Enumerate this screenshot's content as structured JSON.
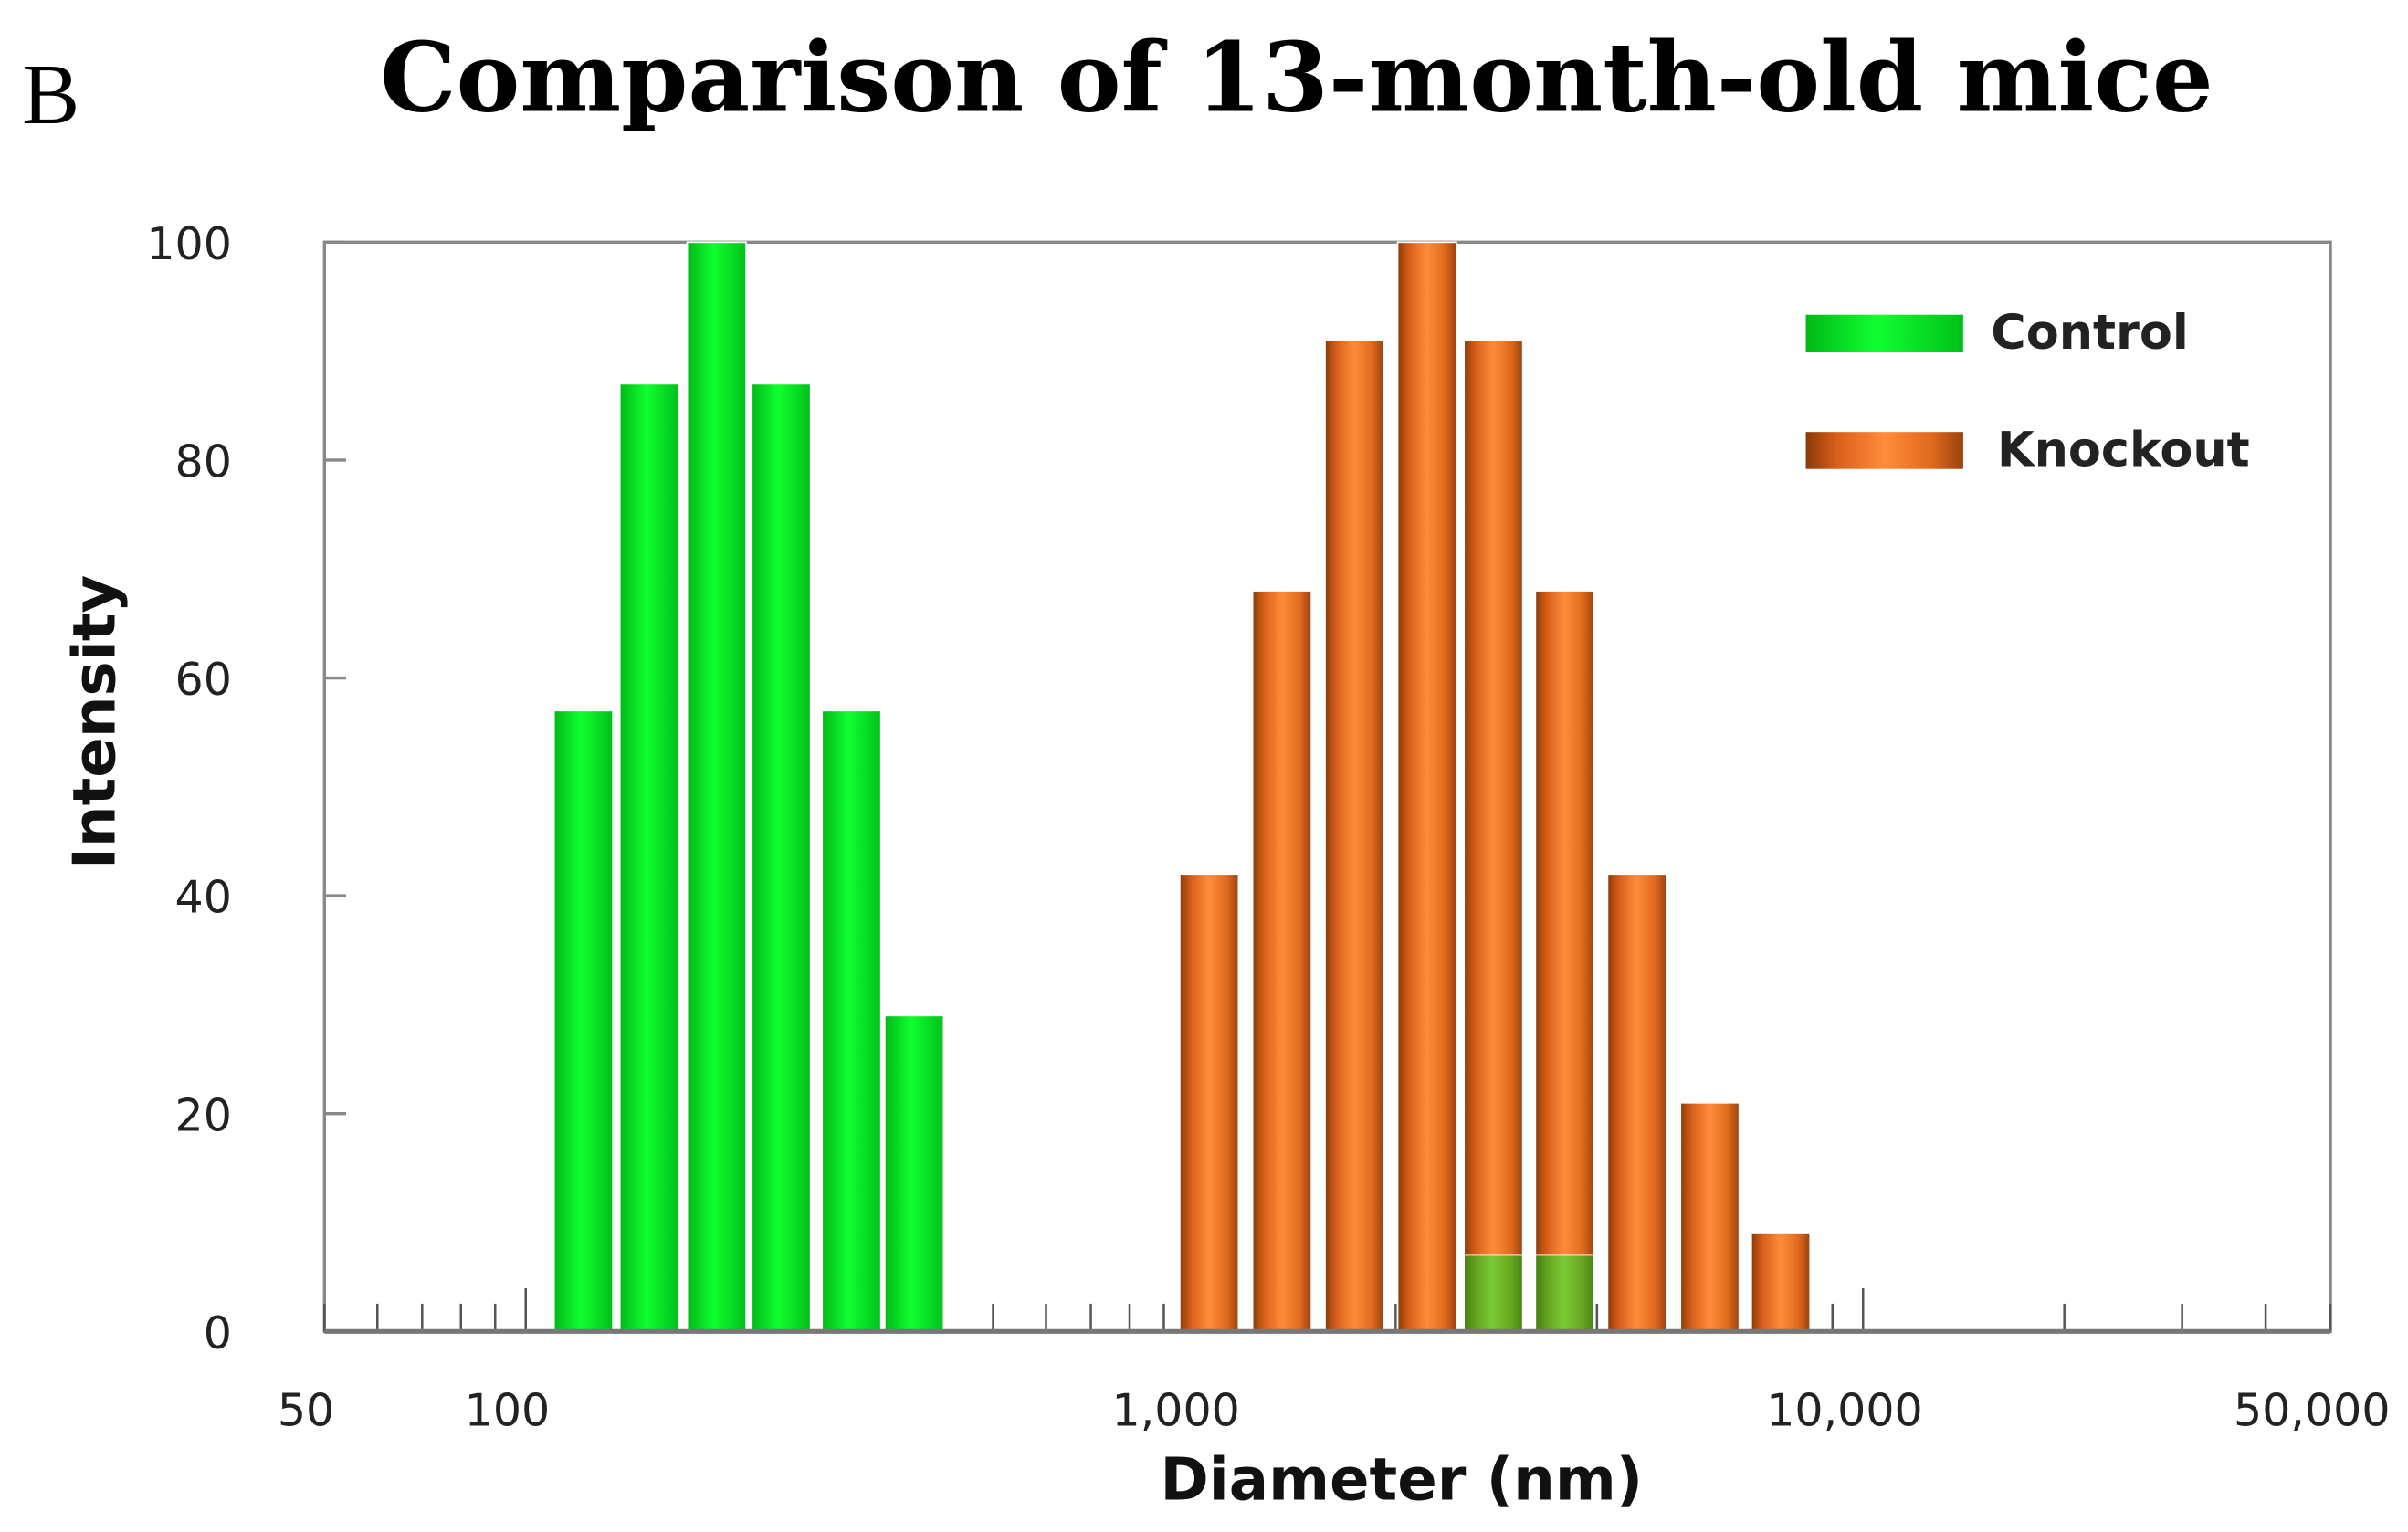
{
  "panel_label": "B",
  "chart_data": {
    "type": "bar",
    "title": "Comparison of 13-month-old mice",
    "xlabel": "Diameter (nm)",
    "ylabel": "Intensity",
    "xscale": "log",
    "xlim": [
      50,
      50000
    ],
    "ylim": [
      0,
      100
    ],
    "xticks": [
      {
        "value": 50,
        "label": "50"
      },
      {
        "value": 100,
        "label": "100"
      },
      {
        "value": 1000,
        "label": "1,000"
      },
      {
        "value": 10000,
        "label": "10,000"
      },
      {
        "value": 50000,
        "label": "50,000"
      }
    ],
    "yticks": [
      {
        "value": 0,
        "label": "0"
      },
      {
        "value": 20,
        "label": "20"
      },
      {
        "value": 40,
        "label": "40"
      },
      {
        "value": 60,
        "label": "60"
      },
      {
        "value": 80,
        "label": "80"
      },
      {
        "value": 100,
        "label": "100"
      }
    ],
    "legend_position": "top-right",
    "series": [
      {
        "name": "Control",
        "color": "#00e020",
        "x": [
          122,
          153,
          193,
          241,
          307,
          381,
          2800,
          3580
        ],
        "values": [
          57,
          87,
          100,
          87,
          57,
          29,
          7,
          7
        ]
      },
      {
        "name": "Knockout",
        "color": "#f07a28",
        "x": [
          1052,
          1352,
          1735,
          2228,
          2800,
          3580,
          4590,
          5900,
          7530
        ],
        "values": [
          42,
          68,
          91,
          100,
          91,
          68,
          42,
          21,
          9
        ]
      }
    ]
  }
}
